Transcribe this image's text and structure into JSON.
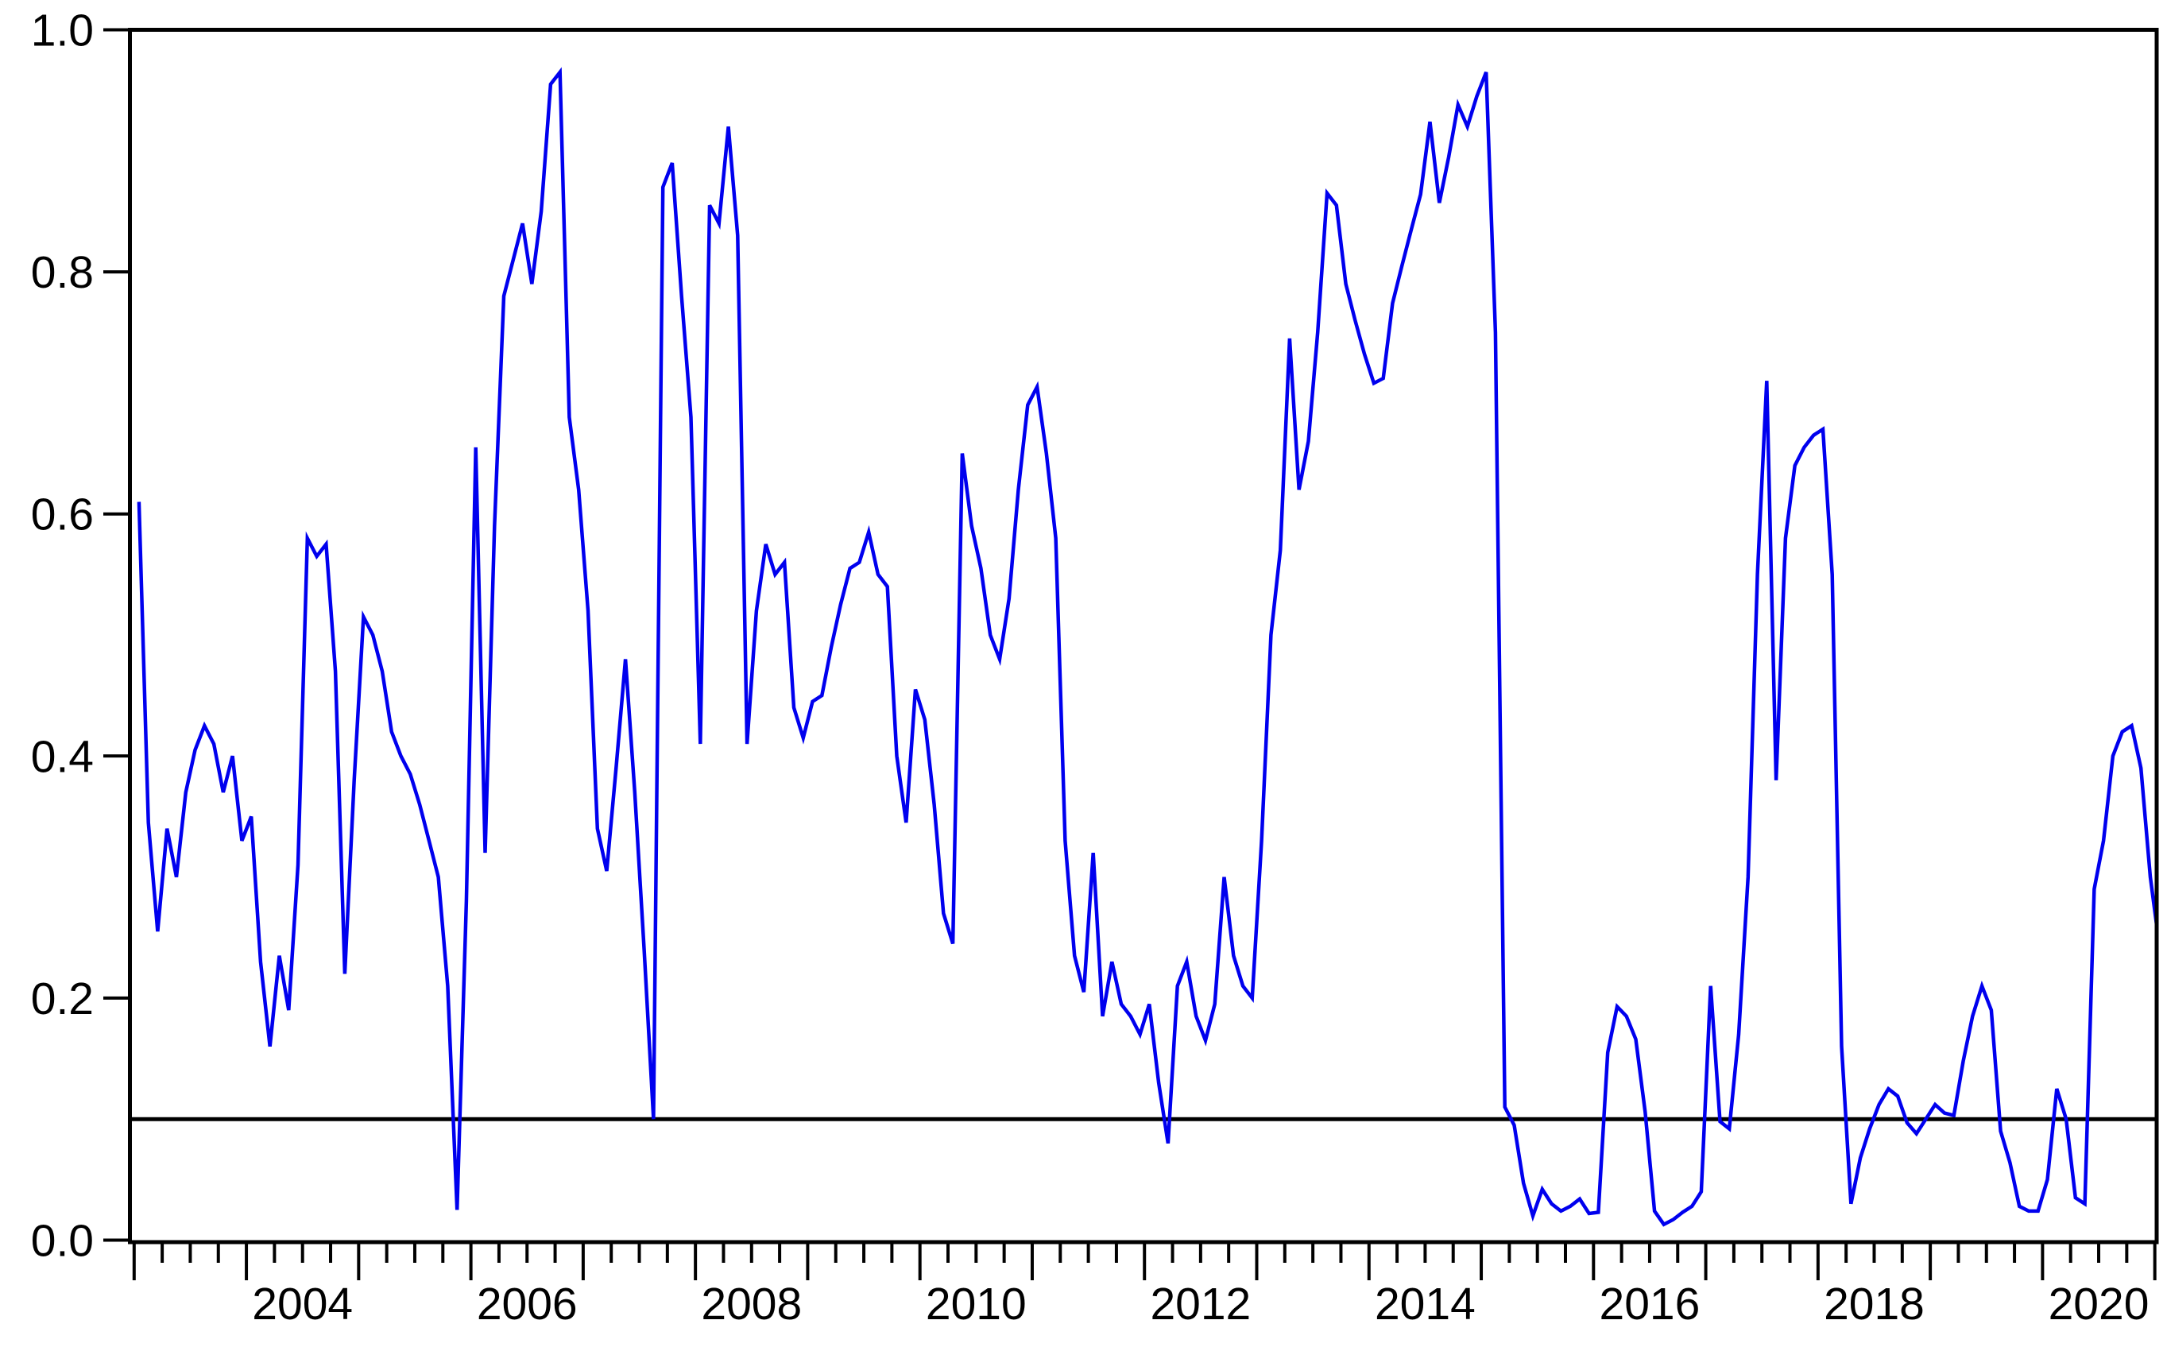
{
  "chart_data": {
    "type": "line",
    "title": "",
    "xlabel": "",
    "ylabel": "",
    "x_start": "2003M01",
    "frequency": "monthly",
    "ylim": [
      0.0,
      1.0
    ],
    "y_tick_labels": [
      "0.0",
      "0.2",
      "0.4",
      "0.6",
      "0.8",
      "1.0"
    ],
    "y_tick_values": [
      0.0,
      0.2,
      0.4,
      0.6,
      0.8,
      1.0
    ],
    "x_tick_labels": [
      "2004",
      "2006",
      "2008",
      "2010",
      "2012",
      "2014",
      "2016",
      "2018",
      "2020"
    ],
    "x_tick_years": [
      2004,
      2006,
      2008,
      2010,
      2012,
      2014,
      2016,
      2018,
      2020
    ],
    "x_year_range": [
      2003,
      2021
    ],
    "minor_ticks_per_year": 4,
    "reference_line_value": 0.1,
    "grid": "off",
    "legend": "none",
    "line_color": "#0000ee",
    "axis_color": "#000000",
    "background_color": "#ffffff",
    "series": [
      {
        "name": "series1",
        "values_by_year": {
          "2003": [
            0.61,
            0.345,
            0.255,
            0.34,
            0.3,
            0.37,
            0.405,
            0.425,
            0.41,
            0.37,
            0.4,
            0.33
          ],
          "2004": [
            0.35,
            0.23,
            0.16,
            0.235,
            0.19,
            0.31,
            0.58,
            0.565,
            0.575,
            0.47,
            0.22,
            0.38
          ],
          "2005": [
            0.515,
            0.5,
            0.47,
            0.42,
            0.4,
            0.385,
            0.36,
            0.33,
            0.3,
            0.21,
            0.025,
            0.28
          ],
          "2006": [
            0.655,
            0.32,
            0.59,
            0.78,
            0.81,
            0.84,
            0.79,
            0.85,
            0.955,
            0.965,
            0.68,
            0.62
          ],
          "2007": [
            0.52,
            0.34,
            0.305,
            0.39,
            0.48,
            0.37,
            0.24,
            0.1,
            0.87,
            0.89,
            0.78,
            0.68
          ],
          "2008": [
            0.41,
            0.855,
            0.84,
            0.92,
            0.83,
            0.41,
            0.52,
            0.575,
            0.55,
            0.56,
            0.44,
            0.415
          ],
          "2009": [
            0.445,
            0.45,
            0.49,
            0.525,
            0.555,
            0.56,
            0.585,
            0.55,
            0.54,
            0.4,
            0.345,
            0.455
          ],
          "2010": [
            0.43,
            0.36,
            0.27,
            0.245,
            0.65,
            0.59,
            0.555,
            0.5,
            0.48,
            0.53,
            0.62,
            0.69
          ],
          "2011": [
            0.705,
            0.65,
            0.58,
            0.33,
            0.235,
            0.205,
            0.32,
            0.185,
            0.23,
            0.195,
            0.185,
            0.17
          ],
          "2012": [
            0.195,
            0.13,
            0.08,
            0.21,
            0.23,
            0.185,
            0.165,
            0.195,
            0.3,
            0.235,
            0.21,
            0.2
          ],
          "2013": [
            0.33,
            0.5,
            0.57,
            0.745,
            0.62,
            0.66,
            0.75,
            0.865,
            0.855,
            0.79,
            0.76,
            0.732
          ],
          "2014": [
            0.708,
            0.712,
            0.774,
            0.805,
            0.835,
            0.864,
            0.924,
            0.857,
            0.895,
            0.938,
            0.92,
            0.945
          ],
          "2015": [
            0.965,
            0.75,
            0.11,
            0.095,
            0.047,
            0.02,
            0.042,
            0.03,
            0.024,
            0.028,
            0.034,
            0.022
          ],
          "2016": [
            0.023,
            0.155,
            0.193,
            0.185,
            0.166,
            0.106,
            0.024,
            0.013,
            0.017,
            0.023,
            0.028,
            0.04
          ],
          "2017": [
            0.21,
            0.098,
            0.092,
            0.17,
            0.3,
            0.55,
            0.71,
            0.38,
            0.58,
            0.64,
            0.655,
            0.665
          ],
          "2018": [
            0.67,
            0.55,
            0.16,
            0.03,
            0.068,
            0.092,
            0.112,
            0.125,
            0.119,
            0.097,
            0.088,
            0.1
          ],
          "2019": [
            0.112,
            0.105,
            0.103,
            0.148,
            0.185,
            0.21,
            0.19,
            0.09,
            0.064,
            0.028,
            0.024,
            0.024
          ],
          "2020": [
            0.05,
            0.125,
            0.1,
            0.035,
            0.03,
            0.29,
            0.33,
            0.4,
            0.42,
            0.425,
            0.39,
            0.3
          ]
        },
        "end_value_at_right_edge": 0.26
      }
    ]
  }
}
